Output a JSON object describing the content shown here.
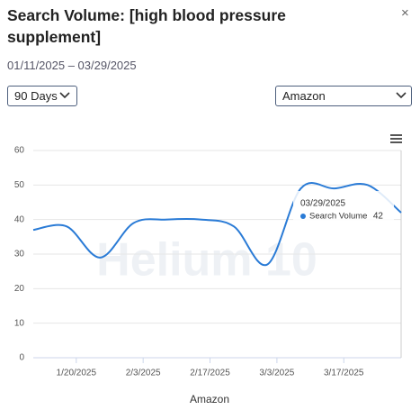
{
  "header": {
    "title": "Search Volume: [high blood pressure supplement]",
    "close": "×",
    "date_range": "01/11/2025 – 03/29/2025"
  },
  "controls": {
    "period": "90 Days",
    "marketplace": "Amazon"
  },
  "chart_data": {
    "type": "line",
    "x": [
      "2025-01-11",
      "2025-01-18",
      "2025-01-25",
      "2025-02-01",
      "2025-02-08",
      "2025-02-15",
      "2025-02-22",
      "2025-03-01",
      "2025-03-08",
      "2025-03-15",
      "2025-03-22",
      "2025-03-29"
    ],
    "series": [
      {
        "name": "Search Volume",
        "color": "#2a7bd6",
        "values": [
          37,
          38,
          29,
          39,
          40,
          40,
          38,
          27,
          49,
          49,
          50,
          42
        ]
      }
    ],
    "xlim": [
      "2025-01-11",
      "2025-03-29"
    ],
    "xticks": [
      {
        "value": "2025-01-20",
        "label": "1/20/2025"
      },
      {
        "value": "2025-02-03",
        "label": "2/3/2025"
      },
      {
        "value": "2025-02-17",
        "label": "2/17/2025"
      },
      {
        "value": "2025-03-03",
        "label": "3/3/2025"
      },
      {
        "value": "2025-03-17",
        "label": "3/17/2025"
      }
    ],
    "ylim": [
      0,
      60
    ],
    "yticks": [
      0,
      10,
      20,
      30,
      40,
      50,
      60
    ],
    "grid": true,
    "x_label": "Amazon",
    "watermark": "Helium 10",
    "tooltip": {
      "date": "03/29/2025"
    }
  }
}
